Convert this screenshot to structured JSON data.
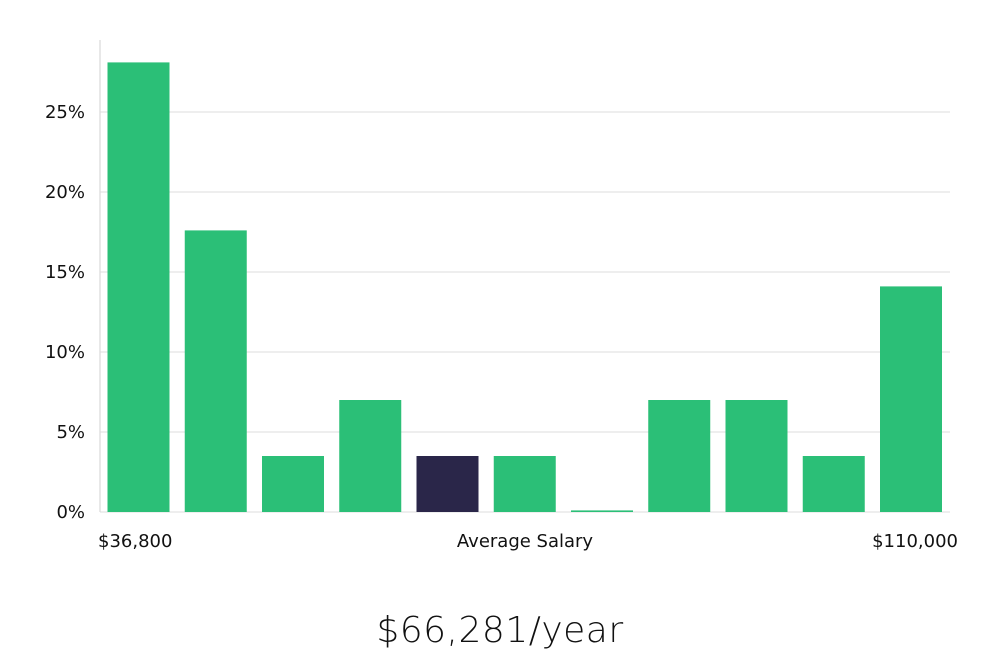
{
  "chart_data": {
    "type": "bar",
    "x_axis_labels": {
      "left": "$36,800",
      "center": "Average Salary",
      "right": "$110,000"
    },
    "y_ticks": [
      "0%",
      "5%",
      "10%",
      "15%",
      "20%",
      "25%"
    ],
    "ylim": [
      0,
      29.5
    ],
    "y_unit": "percent",
    "grid": true,
    "values": [
      28.1,
      17.6,
      3.5,
      7.0,
      3.5,
      3.5,
      0.1,
      7.0,
      7.0,
      3.5,
      14.1
    ],
    "highlight_index": 4,
    "colors": {
      "bar": "#2bbf77",
      "highlight": "#2a2649"
    }
  },
  "summary": {
    "average_salary": "$66,281/year"
  }
}
